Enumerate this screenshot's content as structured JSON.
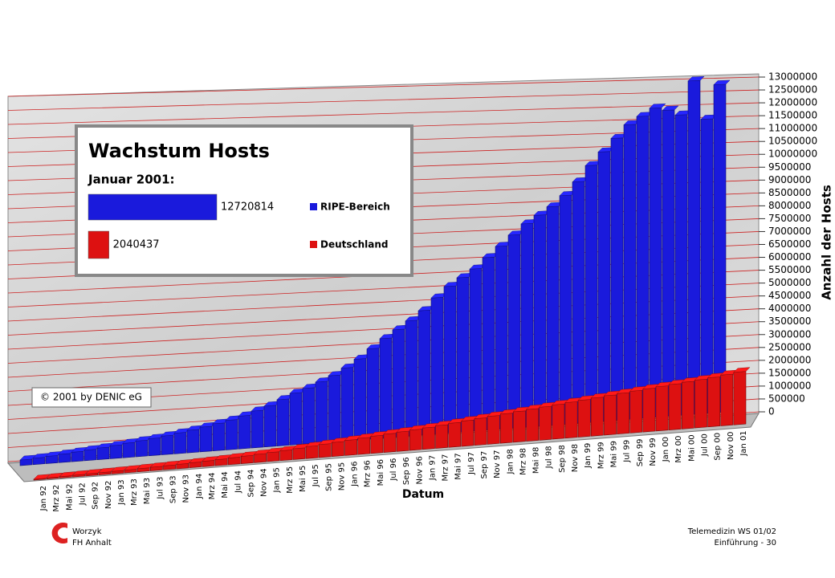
{
  "chart_data": {
    "type": "bar3d",
    "title": "Wachstum Hosts",
    "subtitle": "Januar 2001:",
    "note": "© 2001 by DENIC eG",
    "x_label": "Datum",
    "y_label": "Anzahl der Hosts",
    "categories": [
      "Jan 92",
      "Mrz 92",
      "Mai 92",
      "Jul 92",
      "Sep 92",
      "Nov 92",
      "Jan 93",
      "Mrz 93",
      "Mai 93",
      "Jul 93",
      "Sep 93",
      "Nov 93",
      "Jan 94",
      "Mrz 94",
      "Mai 94",
      "Jul 94",
      "Sep 94",
      "Nov 94",
      "Jan 95",
      "Mrz 95",
      "Mai 95",
      "Jul 95",
      "Sep 95",
      "Nov 95",
      "Jan 96",
      "Mrz 96",
      "Mai 96",
      "Jul 96",
      "Sep 96",
      "Nov 96",
      "Jan 97",
      "Mrz 97",
      "Mai 97",
      "Jul 97",
      "Sep 97",
      "Nov 97",
      "Jan 98",
      "Mrz 98",
      "Mai 98",
      "Jul 98",
      "Sep 98",
      "Nov 98",
      "Jan 99",
      "Mrz 99",
      "Mai 99",
      "Jul 99",
      "Sep 99",
      "Nov 99",
      "Jan 00",
      "Mrz 00",
      "Mai 00",
      "Jul 00",
      "Sep 00",
      "Nov 00",
      "Jan 01"
    ],
    "series": [
      {
        "name": "RIPE-Bereich",
        "color": "#1a1adc",
        "values": [
          200000,
          230000,
          260000,
          300000,
          340000,
          380000,
          420000,
          470000,
          520000,
          570000,
          620000,
          680000,
          750000,
          820000,
          900000,
          990000,
          1080000,
          1200000,
          1350000,
          1500000,
          1700000,
          1900000,
          2050000,
          2250000,
          2450000,
          2700000,
          3000000,
          3350000,
          3700000,
          4000000,
          4300000,
          4650000,
          5100000,
          5500000,
          5800000,
          6100000,
          6500000,
          6900000,
          7300000,
          7700000,
          8000000,
          8300000,
          8700000,
          9200000,
          9800000,
          10300000,
          10800000,
          11300000,
          11600000,
          11900000,
          11800000,
          11600000,
          12900000,
          11400000,
          12720814
        ]
      },
      {
        "name": "Deutschland",
        "color": "#dd1111",
        "values": [
          30000,
          40000,
          50000,
          60000,
          70000,
          80000,
          90000,
          100000,
          115000,
          130000,
          145000,
          160000,
          180000,
          200000,
          220000,
          245000,
          270000,
          300000,
          330000,
          360000,
          400000,
          440000,
          480000,
          520000,
          560000,
          600000,
          640000,
          680000,
          720000,
          760000,
          800000,
          850000,
          900000,
          950000,
          1000000,
          1050000,
          1100000,
          1150000,
          1200000,
          1250000,
          1300000,
          1350000,
          1400000,
          1450000,
          1500000,
          1550000,
          1600000,
          1650000,
          1700000,
          1750000,
          1800000,
          1850000,
          1900000,
          1970000,
          2040437
        ]
      }
    ],
    "ylim": [
      0,
      13000000
    ],
    "yticks": [
      0,
      500000,
      1000000,
      1500000,
      2000000,
      2500000,
      3000000,
      3500000,
      4000000,
      4500000,
      5000000,
      5500000,
      6000000,
      6500000,
      7000000,
      7500000,
      8000000,
      8500000,
      9000000,
      9500000,
      10000000,
      10500000,
      11000000,
      11500000,
      12000000,
      12500000,
      13000000
    ],
    "grid": true,
    "grid_color": "#cc2222"
  },
  "footer": {
    "author": "Worzyk",
    "institution": "FH Anhalt",
    "course": "Telemedizin WS 01/02",
    "page": "Einführung - 30"
  }
}
